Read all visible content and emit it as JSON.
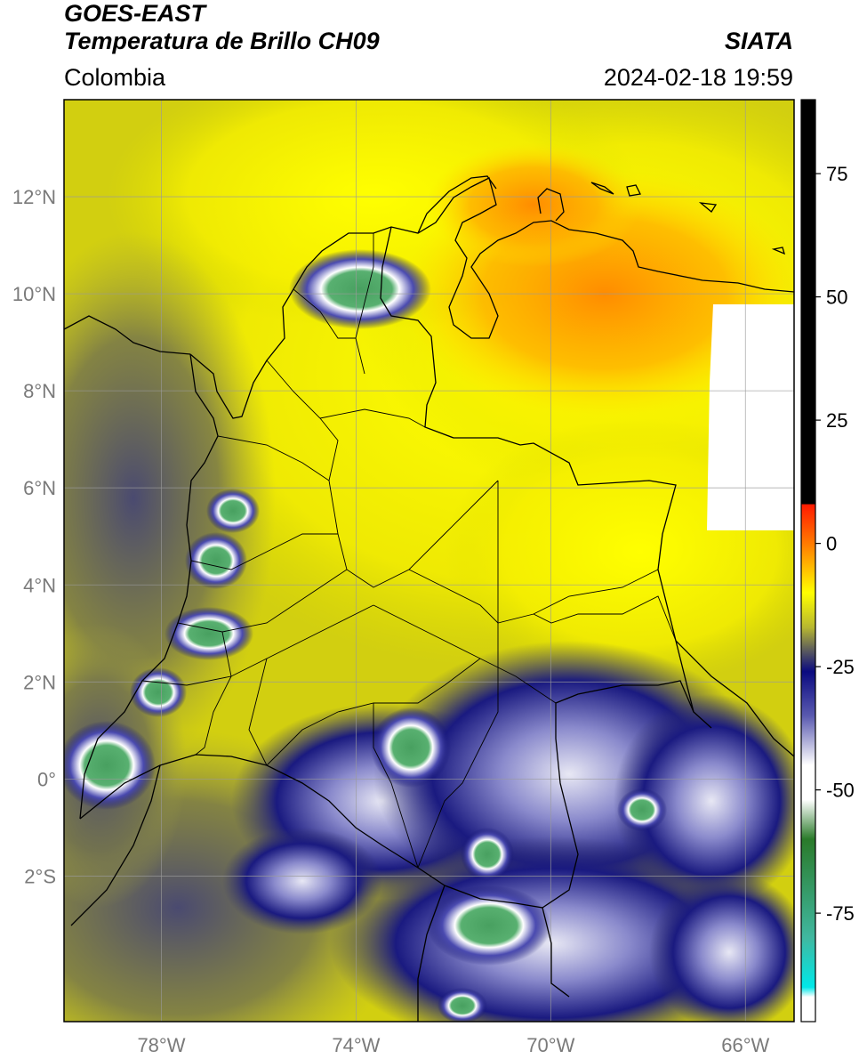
{
  "header": {
    "satellite": "GOES-EAST",
    "product": "Temperatura de Brillo CH09",
    "brand": "SIATA",
    "region": "Colombia",
    "datetime": "2024-02-18 19:59"
  },
  "map": {
    "lon_range": [
      -80,
      -65
    ],
    "lat_range": [
      -5,
      14
    ],
    "lat_ticks": [
      {
        "value": 12,
        "label": "12°N"
      },
      {
        "value": 10,
        "label": "10°N"
      },
      {
        "value": 8,
        "label": "8°N"
      },
      {
        "value": 6,
        "label": "6°N"
      },
      {
        "value": 4,
        "label": "4°N"
      },
      {
        "value": 2,
        "label": "2°N"
      },
      {
        "value": 0,
        "label": "0°"
      },
      {
        "value": -2,
        "label": "2°S"
      }
    ],
    "lon_ticks": [
      {
        "value": -78,
        "label": "78°W"
      },
      {
        "value": -74,
        "label": "74°W"
      },
      {
        "value": -70,
        "label": "70°W"
      },
      {
        "value": -66,
        "label": "66°W"
      }
    ],
    "gridlines": true
  },
  "colorbar": {
    "range": [
      -97,
      90
    ],
    "ticks": [
      {
        "value": 75,
        "label": "75"
      },
      {
        "value": 50,
        "label": "50"
      },
      {
        "value": 25,
        "label": "25"
      },
      {
        "value": 0,
        "label": "0"
      },
      {
        "value": -25,
        "label": "-25"
      },
      {
        "value": -50,
        "label": "-50"
      },
      {
        "value": -75,
        "label": "-75"
      }
    ],
    "stops": [
      {
        "value": 90,
        "color": "#000000"
      },
      {
        "value": 8,
        "color": "#000000"
      },
      {
        "value": 7.9,
        "color": "#ff1a00"
      },
      {
        "value": 0,
        "color": "#ff7a00"
      },
      {
        "value": -10,
        "color": "#ffff00"
      },
      {
        "value": -17,
        "color": "#b8b830"
      },
      {
        "value": -22,
        "color": "#555560"
      },
      {
        "value": -26,
        "color": "#0a0a80"
      },
      {
        "value": -35,
        "color": "#5a5ab0"
      },
      {
        "value": -45,
        "color": "#ffffff"
      },
      {
        "value": -52,
        "color": "#ffffff"
      },
      {
        "value": -60,
        "color": "#2a7a2a"
      },
      {
        "value": -80,
        "color": "#40b8a0"
      },
      {
        "value": -90,
        "color": "#00e8e8"
      },
      {
        "value": -92,
        "color": "#ffffff"
      },
      {
        "value": -97,
        "color": "#ffffff"
      }
    ]
  },
  "colors": {
    "background_field": "#d6d400",
    "warm_field": "#ffe800",
    "orange_field": "#ff9a00",
    "cold_cloud": "#1a1a80",
    "deep_convection": "#3a9a5a",
    "missing_data": "#ffffff"
  }
}
